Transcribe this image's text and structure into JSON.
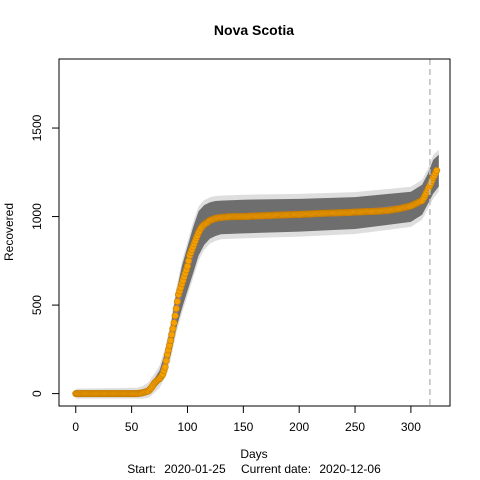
{
  "chart_data": {
    "type": "scatter",
    "title": "Nova Scotia",
    "xlabel": "Days",
    "ylabel": "Recovered",
    "footer": {
      "start_label": "Start:",
      "start_date": "2020-01-25",
      "current_label": "Current date:",
      "current_date": "2020-12-06"
    },
    "xlim": [
      -15,
      335
    ],
    "ylim": [
      -70,
      1890
    ],
    "x_ticks": [
      0,
      50,
      100,
      150,
      200,
      250,
      300
    ],
    "y_ticks": [
      0,
      500,
      1000,
      1500
    ],
    "x_tick_labels": [
      "0",
      "50",
      "100",
      "150",
      "200",
      "250",
      "300"
    ],
    "y_tick_labels": [
      "0",
      "500",
      "1000",
      "1500"
    ],
    "vline_x": 317,
    "grid": false,
    "colors": {
      "points": "#f5a000",
      "fit": "#7b7bc8",
      "band": "#6e6e6e",
      "band_outer": "#d0d0d0",
      "vline": "#bdbdbd"
    },
    "series": [
      {
        "type": "observed",
        "x": [
          0,
          55,
          60,
          65,
          68,
          70,
          72,
          75,
          78,
          80,
          82,
          85,
          88,
          90,
          92,
          95,
          98,
          100,
          102,
          105,
          108,
          110,
          112,
          115,
          118,
          120,
          125,
          130,
          140,
          150,
          160,
          170,
          180,
          190,
          200,
          210,
          220,
          230,
          240,
          250,
          260,
          270,
          280,
          290,
          300,
          305,
          310,
          312,
          315,
          318,
          320,
          323
        ],
        "y": [
          0,
          0,
          5,
          15,
          35,
          55,
          70,
          85,
          110,
          150,
          220,
          300,
          400,
          480,
          560,
          620,
          680,
          720,
          780,
          830,
          880,
          910,
          935,
          955,
          968,
          978,
          990,
          995,
          1000,
          1000,
          1003,
          1005,
          1008,
          1010,
          1012,
          1015,
          1018,
          1020,
          1022,
          1025,
          1028,
          1030,
          1035,
          1045,
          1060,
          1075,
          1090,
          1110,
          1150,
          1190,
          1220,
          1260
        ]
      },
      {
        "type": "fit",
        "x": [
          0,
          55,
          60,
          65,
          70,
          75,
          80,
          85,
          90,
          95,
          100,
          105,
          110,
          115,
          120,
          125,
          130,
          150,
          200,
          250,
          300,
          310,
          315,
          320,
          325
        ],
        "y": [
          0,
          0,
          5,
          20,
          55,
          90,
          170,
          300,
          470,
          600,
          700,
          810,
          900,
          950,
          975,
          988,
          995,
          1000,
          1012,
          1025,
          1060,
          1090,
          1150,
          1220,
          1270
        ]
      },
      {
        "type": "band_upper",
        "x": [
          0,
          55,
          60,
          65,
          70,
          75,
          80,
          85,
          90,
          95,
          100,
          105,
          110,
          115,
          120,
          125,
          130,
          150,
          200,
          250,
          300,
          310,
          315,
          320,
          325
        ],
        "y": [
          0,
          5,
          15,
          35,
          80,
          130,
          230,
          380,
          570,
          720,
          830,
          940,
          1030,
          1065,
          1080,
          1088,
          1090,
          1095,
          1100,
          1110,
          1140,
          1180,
          1240,
          1320,
          1350
        ]
      },
      {
        "type": "band_lower",
        "x": [
          0,
          55,
          60,
          65,
          70,
          75,
          80,
          85,
          90,
          95,
          100,
          105,
          110,
          115,
          120,
          125,
          130,
          150,
          200,
          250,
          300,
          310,
          315,
          320,
          325
        ],
        "y": [
          0,
          0,
          0,
          5,
          30,
          60,
          120,
          220,
          370,
          480,
          580,
          680,
          780,
          840,
          875,
          890,
          900,
          905,
          915,
          930,
          970,
          1010,
          1070,
          1130,
          1170
        ]
      }
    ]
  }
}
